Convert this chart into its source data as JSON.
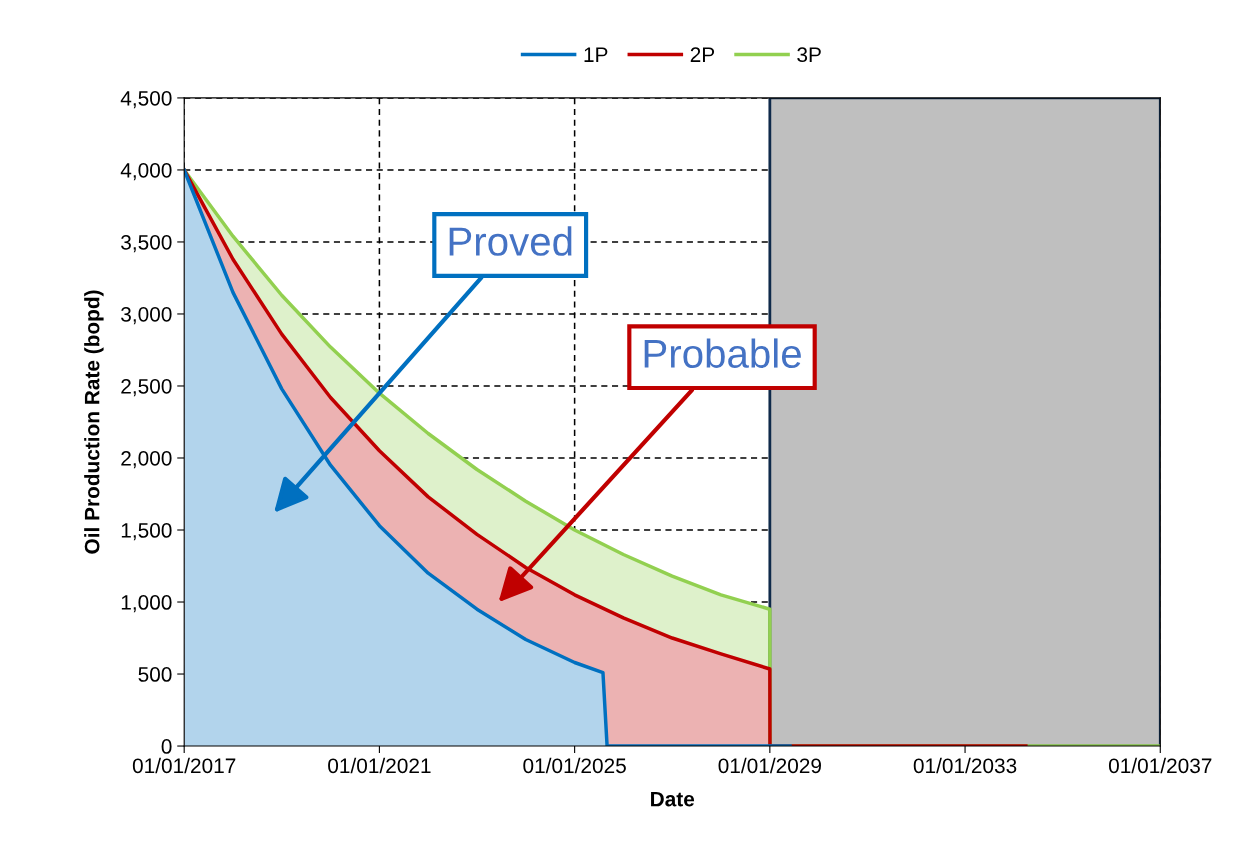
{
  "chart_data": {
    "type": "area",
    "xlabel": "Date",
    "ylabel": "Oil Production Rate (bopd)",
    "xlim": [
      "2017-01-01",
      "2037-01-01"
    ],
    "xticks": [
      {
        "value": "2017-01-01",
        "label": "01/01/2017"
      },
      {
        "value": "2021-01-01",
        "label": "01/01/2021"
      },
      {
        "value": "2025-01-01",
        "label": "01/01/2025"
      },
      {
        "value": "2029-01-01",
        "label": "01/01/2029"
      },
      {
        "value": "2033-01-01",
        "label": "01/01/2033"
      },
      {
        "value": "2037-01-01",
        "label": "01/01/2037"
      }
    ],
    "ylim": [
      0,
      4500
    ],
    "yticks": [
      {
        "value": 0,
        "label": "0"
      },
      {
        "value": 500,
        "label": "500"
      },
      {
        "value": 1000,
        "label": "1,000"
      },
      {
        "value": 1500,
        "label": "1,500"
      },
      {
        "value": 2000,
        "label": "2,000"
      },
      {
        "value": 2500,
        "label": "2,500"
      },
      {
        "value": 3000,
        "label": "3,000"
      },
      {
        "value": 3500,
        "label": "3,500"
      },
      {
        "value": 4000,
        "label": "4,000"
      },
      {
        "value": 4500,
        "label": "4,500"
      }
    ],
    "series": [
      {
        "name": "1P",
        "color": "#0070c0",
        "x": [
          "2017-01-01",
          "2018-01-01",
          "2019-01-01",
          "2020-01-01",
          "2021-01-01",
          "2022-01-01",
          "2023-01-01",
          "2024-01-01",
          "2025-01-01",
          "2025-08-01",
          "2025-09-01",
          "2029-06-01"
        ],
        "values": [
          4000,
          3150,
          2480,
          1950,
          1530,
          1200,
          950,
          740,
          580,
          510,
          0,
          0
        ]
      },
      {
        "name": "2P",
        "color": "#c00000",
        "x": [
          "2017-01-01",
          "2018-01-01",
          "2019-01-01",
          "2020-01-01",
          "2021-01-01",
          "2022-01-01",
          "2023-01-01",
          "2024-01-01",
          "2025-01-01",
          "2026-01-01",
          "2027-01-01",
          "2028-01-01",
          "2029-01-01",
          "2029-01-02",
          "2034-04-01"
        ],
        "values": [
          4000,
          3380,
          2860,
          2420,
          2050,
          1730,
          1470,
          1240,
          1050,
          890,
          750,
          640,
          535,
          0,
          0
        ]
      },
      {
        "name": "3P",
        "color": "#92d050",
        "x": [
          "2017-01-01",
          "2018-01-01",
          "2019-01-01",
          "2020-01-01",
          "2021-01-01",
          "2022-01-01",
          "2023-01-01",
          "2024-01-01",
          "2025-01-01",
          "2026-01-01",
          "2027-01-01",
          "2028-01-01",
          "2029-01-01",
          "2029-01-02",
          "2037-01-01"
        ],
        "values": [
          4000,
          3540,
          3130,
          2770,
          2450,
          2170,
          1920,
          1700,
          1500,
          1330,
          1180,
          1050,
          950,
          0,
          0
        ]
      }
    ],
    "bands": [
      {
        "axis": "x",
        "from": "2029-01-01",
        "to": "2037-01-01",
        "color": "#bfbfbf"
      }
    ],
    "annotations": [
      "Proved",
      "Probable"
    ],
    "grid": true,
    "legend": "top",
    "marker": "none",
    "line_style": "solid"
  }
}
